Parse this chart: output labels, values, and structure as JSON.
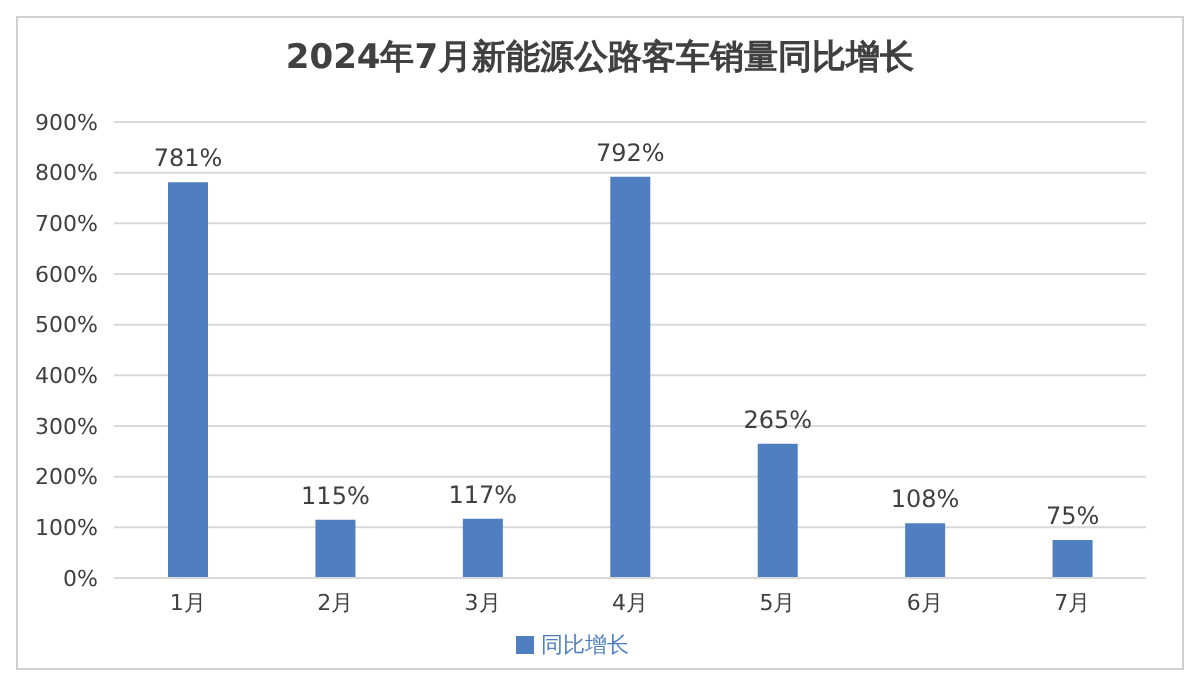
{
  "chart_data": {
    "type": "bar",
    "title": "2024年7月新能源公路客车销量同比增长",
    "categories": [
      "1月",
      "2月",
      "3月",
      "4月",
      "5月",
      "6月",
      "7月"
    ],
    "series": [
      {
        "name": "同比增长",
        "color": "#4f7fc0",
        "values": [
          781,
          115,
          117,
          792,
          265,
          108,
          75
        ],
        "value_labels": [
          "781%",
          "115%",
          "117%",
          "792%",
          "265%",
          "108%",
          "75%"
        ]
      }
    ],
    "ylim": [
      0,
      900
    ],
    "yticks": [
      {
        "value": 0,
        "label": "0%"
      },
      {
        "value": 100,
        "label": "100%"
      },
      {
        "value": 200,
        "label": "200%"
      },
      {
        "value": 300,
        "label": "300%"
      },
      {
        "value": 400,
        "label": "400%"
      },
      {
        "value": 500,
        "label": "500%"
      },
      {
        "value": 600,
        "label": "600%"
      },
      {
        "value": 700,
        "label": "700%"
      },
      {
        "value": 800,
        "label": "800%"
      },
      {
        "value": 900,
        "label": "900%"
      }
    ],
    "grid": "y",
    "legend": "bottom"
  }
}
